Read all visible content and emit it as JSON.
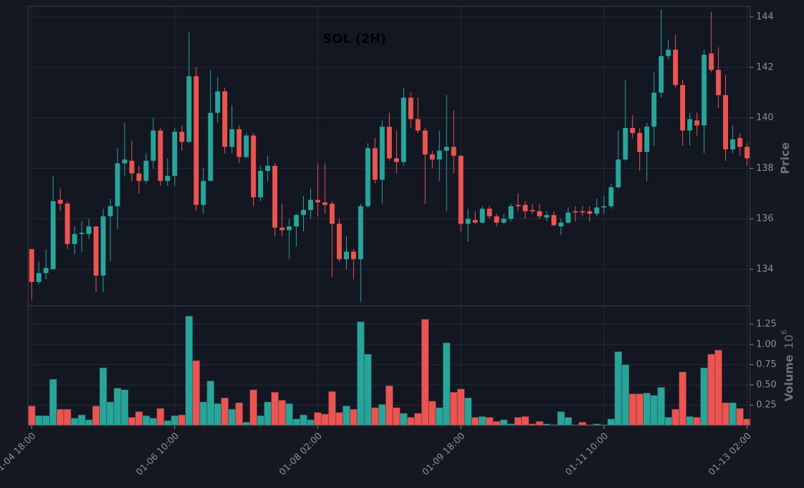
{
  "chart_data": [
    {
      "type": "candlestick",
      "title": "SOL (2H)",
      "ylabel": "Price",
      "up_color": "#26a69a",
      "down_color": "#ef5350",
      "grid": true,
      "ylim": [
        132.55,
        144.42
      ],
      "yticks": [
        134,
        136,
        138,
        140,
        142,
        144
      ],
      "categories": [
        "01-04 18:00",
        null,
        null,
        null,
        null,
        null,
        null,
        null,
        null,
        null,
        null,
        null,
        null,
        null,
        null,
        null,
        null,
        null,
        null,
        null,
        "01-06 10:00",
        null,
        null,
        null,
        null,
        null,
        null,
        null,
        null,
        null,
        null,
        null,
        null,
        null,
        null,
        null,
        null,
        null,
        null,
        null,
        "01-08 02:00",
        null,
        null,
        null,
        null,
        null,
        null,
        null,
        null,
        null,
        null,
        null,
        null,
        null,
        null,
        null,
        null,
        null,
        null,
        null,
        "01-09 18:00",
        null,
        null,
        null,
        null,
        null,
        null,
        null,
        null,
        null,
        null,
        null,
        null,
        null,
        null,
        null,
        null,
        null,
        null,
        null,
        "01-11 10:00",
        null,
        null,
        null,
        null,
        null,
        null,
        null,
        null,
        null,
        null,
        null,
        null,
        null,
        null,
        null,
        null,
        null,
        null,
        null,
        "01-13 02:00"
      ],
      "open": [
        134.8,
        133.5,
        133.85,
        134.0,
        136.75,
        136.6,
        135.0,
        135.4,
        135.4,
        135.7,
        133.75,
        136.1,
        136.5,
        138.2,
        138.3,
        137.8,
        137.5,
        138.3,
        139.5,
        137.5,
        137.7,
        139.45,
        139.05,
        141.65,
        136.55,
        137.5,
        140.2,
        141.05,
        138.85,
        139.55,
        138.45,
        139.3,
        136.85,
        137.9,
        138.1,
        135.65,
        135.55,
        135.7,
        136.15,
        136.35,
        136.75,
        136.65,
        136.6,
        135.8,
        134.4,
        134.7,
        134.4,
        136.5,
        138.8,
        137.55,
        139.65,
        138.4,
        138.25,
        140.8,
        139.95,
        139.5,
        138.55,
        138.35,
        138.7,
        138.85,
        138.5,
        135.8,
        135.95,
        135.85,
        136.4,
        136.1,
        135.85,
        136.0,
        136.55,
        136.55,
        136.35,
        136.3,
        136.05,
        136.15,
        135.7,
        135.85,
        136.3,
        136.3,
        136.3,
        136.2,
        136.45,
        136.5,
        137.25,
        138.35,
        139.6,
        139.4,
        138.65,
        139.65,
        141.0,
        142.45,
        142.7,
        141.3,
        139.5,
        139.9,
        139.7,
        142.55,
        141.9,
        140.9,
        138.75,
        139.2,
        138.85
      ],
      "high": [
        134.8,
        134.3,
        134.8,
        137.7,
        137.2,
        136.7,
        135.7,
        135.9,
        136.0,
        135.7,
        136.4,
        136.8,
        138.8,
        139.8,
        139.1,
        138.1,
        138.6,
        140.0,
        139.6,
        138.4,
        139.6,
        139.7,
        143.4,
        142.0,
        138.0,
        141.9,
        141.6,
        141.2,
        140.5,
        139.7,
        139.4,
        139.4,
        138.1,
        138.5,
        138.2,
        136.6,
        136.0,
        136.2,
        136.9,
        137.2,
        138.2,
        138.2,
        136.7,
        136.0,
        135.3,
        134.8,
        136.6,
        139.0,
        139.2,
        139.9,
        140.2,
        139.5,
        141.2,
        141.0,
        140.8,
        139.6,
        138.7,
        139.5,
        140.9,
        140.3,
        138.5,
        136.4,
        136.3,
        136.5,
        136.5,
        136.2,
        136.2,
        136.6,
        137.0,
        136.7,
        136.6,
        136.6,
        136.3,
        136.3,
        136.0,
        136.45,
        136.5,
        136.5,
        136.5,
        136.8,
        136.9,
        137.4,
        139.5,
        141.5,
        140.1,
        139.6,
        139.8,
        141.8,
        144.3,
        143.1,
        143.3,
        141.5,
        140.2,
        140.2,
        142.7,
        144.2,
        142.8,
        141.7,
        139.7,
        139.4,
        139.0
      ],
      "low": [
        132.8,
        133.4,
        133.6,
        134.0,
        136.3,
        134.8,
        134.6,
        134.7,
        135.2,
        133.1,
        133.1,
        134.3,
        135.6,
        137.7,
        137.5,
        137.0,
        137.4,
        138.0,
        137.3,
        137.3,
        137.3,
        138.7,
        139.0,
        136.3,
        136.2,
        137.5,
        139.8,
        138.6,
        138.6,
        138.2,
        138.4,
        136.5,
        136.7,
        137.5,
        135.3,
        135.3,
        134.4,
        134.9,
        135.5,
        136.0,
        136.1,
        136.2,
        133.7,
        134.3,
        134.0,
        133.6,
        132.7,
        136.4,
        137.4,
        136.6,
        138.3,
        137.8,
        138.1,
        139.6,
        139.4,
        136.6,
        138.0,
        137.5,
        136.3,
        137.8,
        135.5,
        135.1,
        135.8,
        135.8,
        136.0,
        135.7,
        135.8,
        135.9,
        136.3,
        136.0,
        136.2,
        136.0,
        135.9,
        135.7,
        135.35,
        135.8,
        135.9,
        136.1,
        135.9,
        136.1,
        136.2,
        136.4,
        137.2,
        138.3,
        139.2,
        137.9,
        137.5,
        138.9,
        140.8,
        142.3,
        141.2,
        138.9,
        138.9,
        139.3,
        138.6,
        141.8,
        140.4,
        138.3,
        138.6,
        138.5,
        138.1
      ],
      "close": [
        133.5,
        133.85,
        134.05,
        136.7,
        136.6,
        135.0,
        135.4,
        135.45,
        135.7,
        133.75,
        136.1,
        136.5,
        138.2,
        138.35,
        137.8,
        137.5,
        138.3,
        139.5,
        137.5,
        137.7,
        139.45,
        139.05,
        141.65,
        136.55,
        137.5,
        140.2,
        141.05,
        138.85,
        139.55,
        138.45,
        139.3,
        136.85,
        137.9,
        138.1,
        135.65,
        135.55,
        135.7,
        136.15,
        136.35,
        136.75,
        136.65,
        136.55,
        135.8,
        134.4,
        134.7,
        134.4,
        136.5,
        138.8,
        137.55,
        139.65,
        138.4,
        138.25,
        140.8,
        139.95,
        139.5,
        138.55,
        138.35,
        138.7,
        138.85,
        138.5,
        135.8,
        136.0,
        135.85,
        136.4,
        136.1,
        135.85,
        136.0,
        136.5,
        136.5,
        136.3,
        136.3,
        136.1,
        136.15,
        135.75,
        135.85,
        136.25,
        136.25,
        136.25,
        136.2,
        136.45,
        136.5,
        137.25,
        138.35,
        139.6,
        139.4,
        138.65,
        139.65,
        141.0,
        142.45,
        142.7,
        141.3,
        139.5,
        139.95,
        139.7,
        142.5,
        141.9,
        140.9,
        138.75,
        139.15,
        138.85,
        138.4
      ]
    },
    {
      "type": "bar",
      "ylabel": "Volume",
      "y_offset_label": {
        "base": "10",
        "exponent": "6"
      },
      "up_color": "#26a69a",
      "down_color": "#ef5350",
      "grid": true,
      "ylim": [
        0,
        1.476
      ],
      "yticks": [
        0.25,
        {
          "value": 0.5,
          "label": "0.50"
        },
        0.75,
        {
          "value": 1.0,
          "label": "1.00"
        },
        1.25
      ],
      "values": [
        0.24,
        0.12,
        0.12,
        0.57,
        0.2,
        0.2,
        0.09,
        0.13,
        0.07,
        0.24,
        0.71,
        0.29,
        0.46,
        0.44,
        0.1,
        0.17,
        0.12,
        0.09,
        0.21,
        0.06,
        0.12,
        0.13,
        1.35,
        0.8,
        0.29,
        0.55,
        0.27,
        0.34,
        0.2,
        0.28,
        0.04,
        0.44,
        0.12,
        0.29,
        0.41,
        0.31,
        0.27,
        0.08,
        0.13,
        0.07,
        0.16,
        0.14,
        0.42,
        0.16,
        0.24,
        0.2,
        1.28,
        0.88,
        0.22,
        0.26,
        0.49,
        0.22,
        0.15,
        0.1,
        0.15,
        1.31,
        0.3,
        0.22,
        1.02,
        0.41,
        0.45,
        0.34,
        0.1,
        0.11,
        0.1,
        0.05,
        0.07,
        0.02,
        0.1,
        0.11,
        0.02,
        0.05,
        0.02,
        0.01,
        0.17,
        0.1,
        0.01,
        0.04,
        0.01,
        0.02,
        0.01,
        0.08,
        0.91,
        0.75,
        0.39,
        0.39,
        0.4,
        0.37,
        0.47,
        0.1,
        0.2,
        0.66,
        0.11,
        0.1,
        0.71,
        0.88,
        0.93,
        0.28,
        0.28,
        0.21,
        0.08
      ]
    }
  ]
}
